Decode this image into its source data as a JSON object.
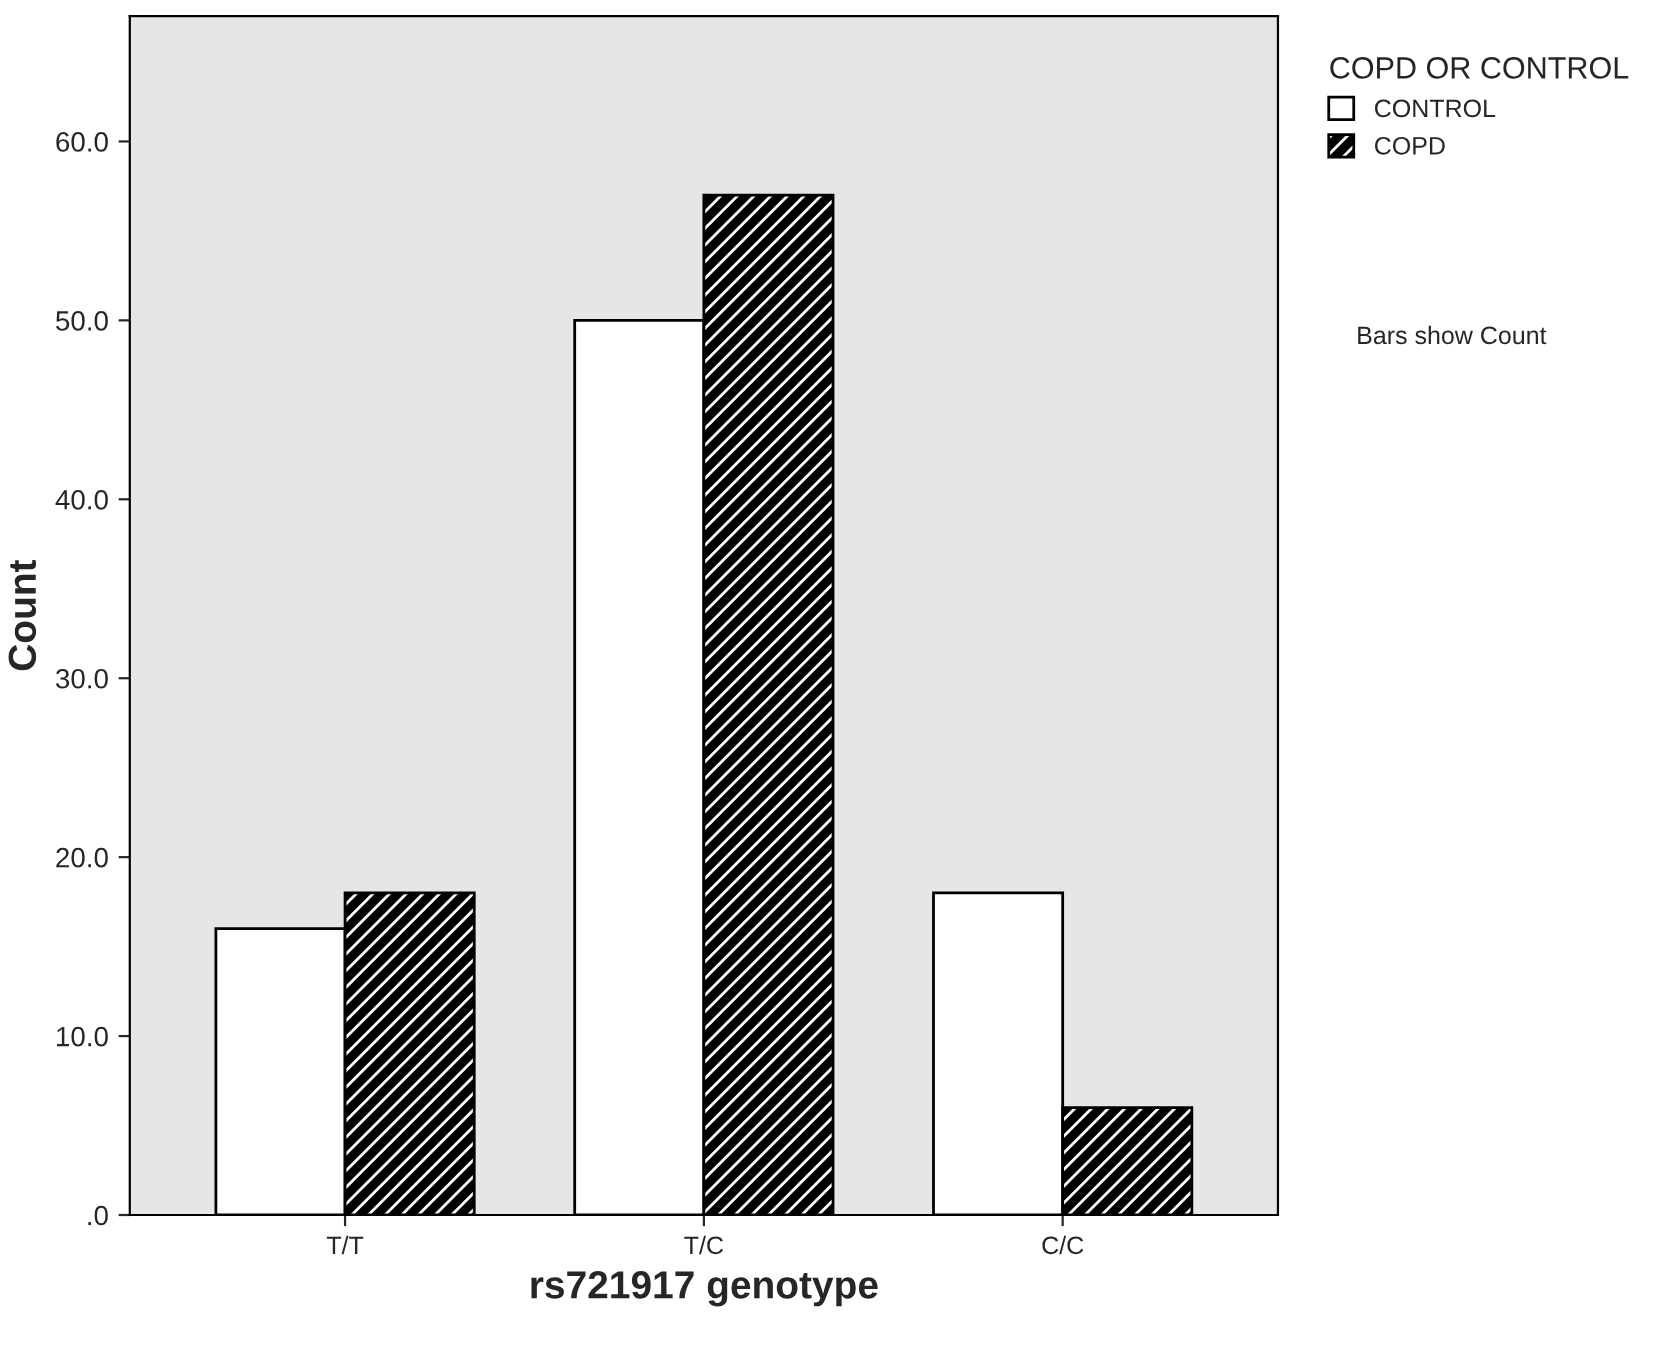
{
  "chart_data": {
    "type": "bar",
    "xlabel": "rs721917 genotype",
    "ylabel": "Count",
    "legend_title": "COPD OR CONTROL",
    "categories": [
      "T/T",
      "T/C",
      "C/C"
    ],
    "series": [
      {
        "name": "CONTROL",
        "color": "#ffffff",
        "values": [
          16,
          50,
          18
        ]
      },
      {
        "name": "COPD",
        "color": "#000000",
        "values": [
          18,
          57,
          6
        ]
      }
    ],
    "ylim": [
      0,
      67
    ],
    "yticks": [
      {
        "value": 0,
        "label": ".0"
      },
      {
        "value": 10,
        "label": "10.0"
      },
      {
        "value": 20,
        "label": "20.0"
      },
      {
        "value": 30,
        "label": "30.0"
      },
      {
        "value": 40,
        "label": "40.0"
      },
      {
        "value": 50,
        "label": "50.0"
      },
      {
        "value": 60,
        "label": "60.0"
      }
    ],
    "annotations": [
      "Bars show Count"
    ],
    "legend": "top right",
    "grid": false
  }
}
